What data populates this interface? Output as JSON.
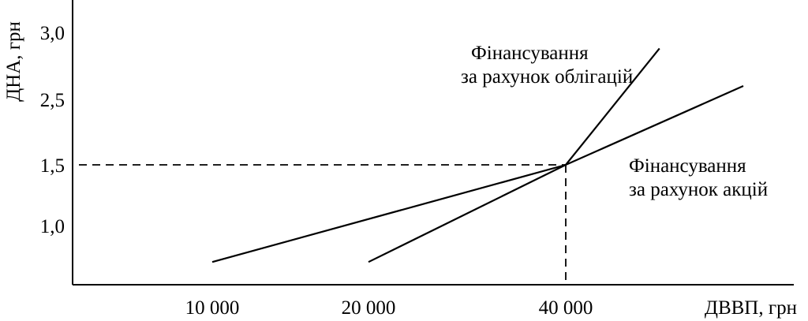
{
  "chart_data": {
    "type": "line",
    "xlabel": "ДВВП, грн",
    "ylabel": "ДНА, грн",
    "x_ticks": [
      {
        "value": 10000,
        "label": "10 000"
      },
      {
        "value": 20000,
        "label": "20 000"
      },
      {
        "value": 40000,
        "label": "40 000"
      }
    ],
    "y_ticks": [
      {
        "value": 1.0,
        "label": "1,0"
      },
      {
        "value": 1.5,
        "label": "1,5"
      },
      {
        "value": 2.5,
        "label": "2,5"
      },
      {
        "value": 3.0,
        "label": "3,0"
      }
    ],
    "series": [
      {
        "name": "Фінансування за рахунок облігацій",
        "label_lines": [
          "Фінансування",
          "за рахунок облігацій"
        ],
        "points": [
          {
            "x": 20000,
            "y": 0.7
          },
          {
            "x": 40000,
            "y": 1.5
          },
          {
            "x": 49500,
            "y": 2.88
          }
        ]
      },
      {
        "name": "Фінансування за рахунок акцій",
        "label_lines": [
          "Фінансування",
          "за рахунок акцій"
        ],
        "points": [
          {
            "x": 10000,
            "y": 0.7
          },
          {
            "x": 40000,
            "y": 1.5
          },
          {
            "x": 58000,
            "y": 2.6
          }
        ]
      }
    ],
    "reference_point": {
      "x": 40000,
      "y": 1.5
    },
    "grid": false,
    "legend": "none"
  }
}
